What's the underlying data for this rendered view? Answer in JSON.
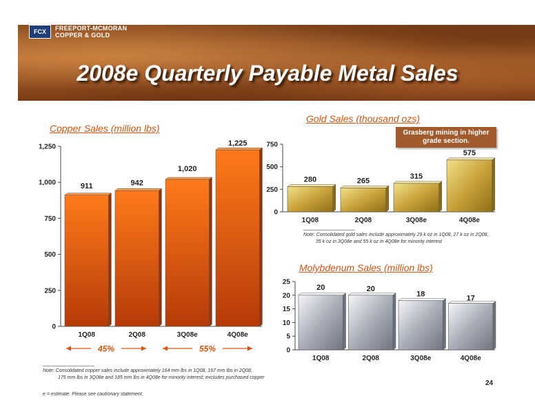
{
  "header": {
    "logo_mark": "FCX",
    "logo_line1": "FREEPORT-MCMORAN",
    "logo_line2": "COPPER & GOLD",
    "title": "2008e Quarterly Payable Metal Sales"
  },
  "colors": {
    "copper": "#e85a10",
    "gold": "#d4b44a",
    "moly": "#c0c4cc",
    "accent": "#d9540f"
  },
  "callout": "Grasberg mining in higher grade section.",
  "page_number": "24",
  "notes": {
    "gold_line1": "Note:  Consolidated gold sales include approximately 29 k oz in 1Q08, 27 k oz in 2Q08,",
    "gold_line2": "35 k oz in 3Q08e and 55 k oz in 4Q08e for minority interest",
    "copper_line1": "Note:  Consolidated copper sales include approximately 164 mm lbs in 1Q08, 167 mm lbs in 2Q08,",
    "copper_line2": "175 mm lbs in 3Q08e and 185 mm lbs in 4Q08e for minority interest; excludes purchased copper",
    "estimate": "e = estimate. Please see cautionary statement."
  },
  "chart_data": [
    {
      "type": "bar",
      "title": "Copper Sales (million lbs)",
      "categories": [
        "1Q08",
        "2Q08",
        "3Q08e",
        "4Q08e"
      ],
      "values": [
        911,
        942,
        1020,
        1225
      ],
      "value_labels": [
        "911",
        "942",
        "1,020",
        "1,225"
      ],
      "yticks": [
        "0",
        "250",
        "500",
        "750",
        "1,000",
        "1,250"
      ],
      "ylim": [
        0,
        1250
      ],
      "growth_labels": [
        "45%",
        "55%"
      ]
    },
    {
      "type": "bar",
      "title": "Gold Sales (thousand ozs)",
      "categories": [
        "1Q08",
        "2Q08",
        "3Q08e",
        "4Q08e"
      ],
      "values": [
        280,
        265,
        315,
        575
      ],
      "value_labels": [
        "280",
        "265",
        "315",
        "575"
      ],
      "yticks": [
        "0",
        "250",
        "500",
        "750"
      ],
      "ylim": [
        0,
        750
      ]
    },
    {
      "type": "bar",
      "title": "Molybdenum Sales (million lbs)",
      "categories": [
        "1Q08",
        "2Q08",
        "3Q08e",
        "4Q08e"
      ],
      "values": [
        20,
        20,
        18,
        17
      ],
      "value_labels": [
        "20",
        "20",
        "18",
        "17"
      ],
      "yticks": [
        "0",
        "5",
        "10",
        "15",
        "20",
        "25"
      ],
      "ylim": [
        0,
        25
      ]
    }
  ]
}
